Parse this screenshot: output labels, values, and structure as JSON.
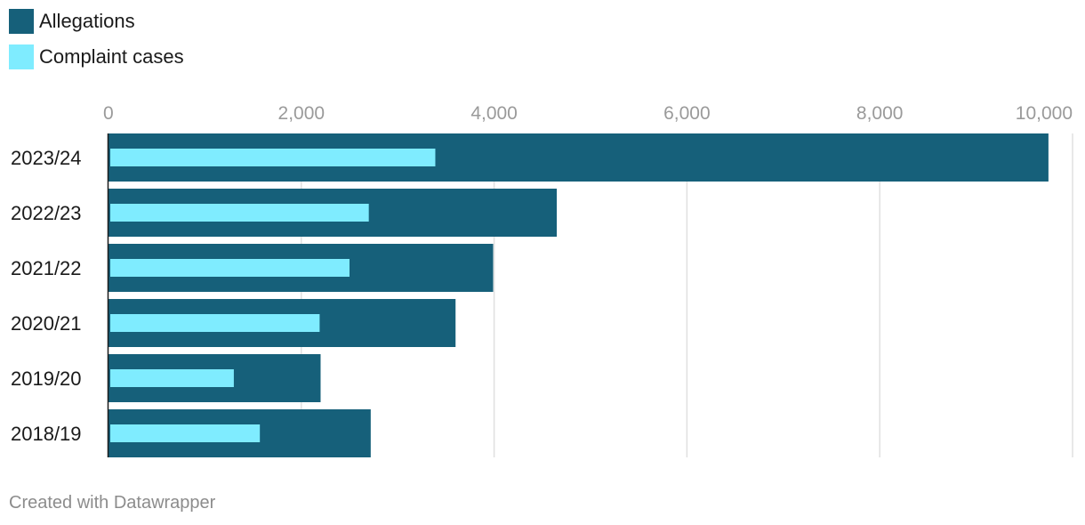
{
  "legend": {
    "items": [
      {
        "label": "Allegations",
        "color": "#16607a"
      },
      {
        "label": "Complaint cases",
        "color": "#7fecff"
      }
    ]
  },
  "footer": {
    "text": "Created with Datawrapper"
  },
  "chart_data": {
    "type": "bar",
    "orientation": "horizontal",
    "categories": [
      "2023/24",
      "2022/23",
      "2021/22",
      "2020/21",
      "2019/20",
      "2018/19"
    ],
    "series": [
      {
        "name": "Allegations",
        "color": "#16607a",
        "values": [
          9750,
          4650,
          3990,
          3600,
          2200,
          2720
        ]
      },
      {
        "name": "Complaint cases",
        "color": "#7fecff",
        "values": [
          3390,
          2700,
          2500,
          2190,
          1300,
          1570
        ]
      }
    ],
    "xlim": [
      0,
      10000
    ],
    "ticks": [
      0,
      2000,
      4000,
      6000,
      8000,
      10000
    ],
    "tick_labels": [
      "0",
      "2,000",
      "4,000",
      "6,000",
      "8,000",
      "10,000"
    ],
    "grid": true,
    "legend_position": "top-left"
  }
}
